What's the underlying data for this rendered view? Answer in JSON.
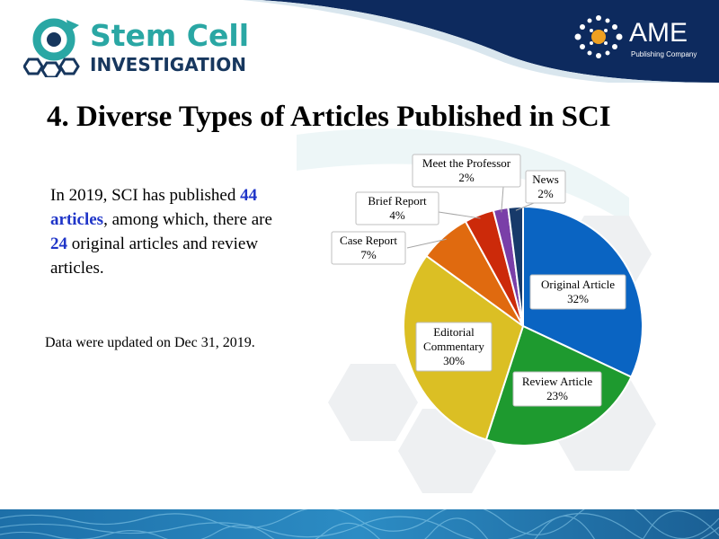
{
  "header": {
    "logo_line1": "Stem Cell",
    "logo_line2": "INVESTIGATION",
    "publisher_name": "AME",
    "publisher_sub": "Publishing Company",
    "brand_color": "#2aa7a4",
    "header_color": "#0d2a5e"
  },
  "title": "4. Diverse Types of Articles Published in SCI",
  "summary": {
    "part1": "In 2019, SCI has published ",
    "articles_count": "44 articles",
    "part2": ", among which, there are ",
    "original_count": "24",
    "part3": " original articles and review articles."
  },
  "update_note": "Data were updated on Dec 31, 2019.",
  "chart_data": {
    "type": "pie",
    "start": "12 o'clock",
    "direction": "clockwise",
    "slices": [
      {
        "label": "Original Article",
        "pct_label": "32%",
        "value": 32,
        "color": "#0a64c2"
      },
      {
        "label": "Review Article",
        "pct_label": "23%",
        "value": 23,
        "color": "#1e9a2f"
      },
      {
        "label": "Editorial Commentary",
        "label_lines": [
          "Editorial",
          "Commentary"
        ],
        "pct_label": "30%",
        "value": 30,
        "color": "#dbbf24"
      },
      {
        "label": "Case Report",
        "pct_label": "7%",
        "value": 7,
        "color": "#e06a0f"
      },
      {
        "label": "Brief Report",
        "pct_label": "4%",
        "value": 4,
        "color": "#cc2a0a"
      },
      {
        "label": "Meet the Professor",
        "pct_label": "2%",
        "value": 2,
        "color": "#7a3fa8"
      },
      {
        "label": "News",
        "pct_label": "2%",
        "value": 2,
        "color": "#173a6a"
      }
    ]
  }
}
